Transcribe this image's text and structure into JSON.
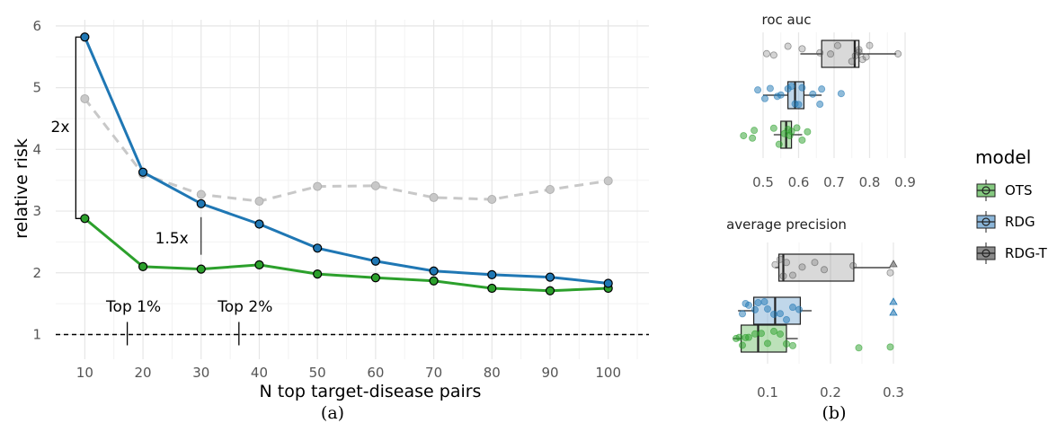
{
  "chart_data": [
    {
      "type": "line",
      "caption": "(a)",
      "xlabel": "N top target-disease pairs",
      "ylabel": "relative risk",
      "x": [
        10,
        20,
        30,
        40,
        50,
        60,
        70,
        80,
        90,
        100
      ],
      "xticks": [
        "10",
        "20",
        "30",
        "40",
        "50",
        "60",
        "70",
        "80",
        "90",
        "100"
      ],
      "yticks": [
        "1",
        "2",
        "3",
        "4",
        "5",
        "6"
      ],
      "xlim": [
        5,
        107
      ],
      "ylim": [
        0.6,
        6.1
      ],
      "grid": true,
      "series": [
        {
          "name": "RDG-T",
          "color": "#c8c8c8",
          "dashed": true,
          "values": [
            4.82,
            3.6,
            3.27,
            3.16,
            3.4,
            3.41,
            3.22,
            3.19,
            3.35,
            3.49
          ]
        },
        {
          "name": "OTS",
          "color": "#2ca02c",
          "dashed": false,
          "values": [
            2.88,
            2.1,
            2.06,
            2.13,
            1.98,
            1.92,
            1.87,
            1.75,
            1.71,
            1.75
          ]
        },
        {
          "name": "RDG",
          "color": "#1f77b4",
          "dashed": false,
          "values": [
            5.82,
            3.63,
            3.12,
            2.79,
            2.4,
            2.19,
            2.03,
            1.97,
            1.93,
            1.83
          ]
        }
      ],
      "reference_line": 1,
      "annotations": [
        {
          "text": "2x",
          "x": 10,
          "y_from": 2.88,
          "y_to": 5.82
        },
        {
          "text": "1.5x",
          "x": 30,
          "y_from": 2.06,
          "y_to": 3.12
        },
        {
          "text": "Top 1%",
          "x": 17.3,
          "y": 1
        },
        {
          "text": "Top 2%",
          "x": 36.5,
          "y": 1
        }
      ]
    },
    {
      "type": "box",
      "caption": "(b)",
      "panels": [
        {
          "title": "roc auc",
          "xticks": [
            "0.5",
            "0.6",
            "0.7",
            "0.8",
            "0.9"
          ],
          "xlim": [
            0.42,
            0.92
          ],
          "boxes": [
            {
              "model": "RDG-T",
              "q1": 0.665,
              "median": 0.758,
              "q3": 0.77,
              "whisker_low": 0.605,
              "whisker_high": 0.875,
              "points": [
                0.51,
                0.53,
                0.57,
                0.61,
                0.66,
                0.69,
                0.71,
                0.75,
                0.76,
                0.77,
                0.77,
                0.78,
                0.79,
                0.8,
                0.88
              ]
            },
            {
              "model": "RDG",
              "q1": 0.57,
              "median": 0.59,
              "q3": 0.615,
              "whisker_low": 0.5,
              "whisker_high": 0.665,
              "points": [
                0.485,
                0.505,
                0.52,
                0.54,
                0.55,
                0.57,
                0.58,
                0.59,
                0.6,
                0.61,
                0.64,
                0.66,
                0.665,
                0.72
              ]
            },
            {
              "model": "OTS",
              "q1": 0.55,
              "median": 0.565,
              "q3": 0.58,
              "whisker_low": 0.53,
              "whisker_high": 0.61,
              "points": [
                0.445,
                0.47,
                0.475,
                0.53,
                0.545,
                0.56,
                0.57,
                0.575,
                0.58,
                0.595,
                0.61,
                0.625
              ]
            }
          ]
        },
        {
          "title": "average precision",
          "xticks": [
            "0.1",
            "0.2",
            "0.3"
          ],
          "xlim": [
            0.035,
            0.31
          ],
          "boxes": [
            {
              "model": "RDG-T",
              "q1": 0.118,
              "median": 0.125,
              "q3": 0.237,
              "whisker_low": 0.112,
              "whisker_high": 0.295,
              "points": [
                0.112,
                0.12,
                0.125,
                0.13,
                0.14,
                0.155,
                0.175,
                0.19,
                0.236,
                0.295
              ],
              "outliers": [
                {
                  "value": 0.3,
                  "shape": "triangle"
                }
              ]
            },
            {
              "model": "RDG",
              "q1": 0.078,
              "median": 0.112,
              "q3": 0.152,
              "whisker_low": 0.053,
              "whisker_high": 0.17,
              "points": [
                0.06,
                0.065,
                0.07,
                0.08,
                0.085,
                0.095,
                0.1,
                0.11,
                0.12,
                0.13,
                0.14,
                0.15
              ],
              "outliers": [
                {
                  "value": 0.3,
                  "shape": "triangle"
                },
                {
                  "value": 0.3,
                  "shape": "triangle"
                }
              ]
            },
            {
              "model": "OTS",
              "q1": 0.058,
              "median": 0.085,
              "q3": 0.13,
              "whisker_low": 0.045,
              "whisker_high": 0.148,
              "points": [
                0.05,
                0.055,
                0.06,
                0.065,
                0.07,
                0.08,
                0.09,
                0.1,
                0.11,
                0.12,
                0.13,
                0.14,
                0.245,
                0.295
              ]
            }
          ]
        }
      ],
      "legend": {
        "title": "model",
        "position": "right",
        "entries": [
          {
            "label": "OTS",
            "color": "#2ca02c",
            "fill": "#85c980"
          },
          {
            "label": "RDG",
            "color": "#1f77b4",
            "fill": "#8cb6d9"
          },
          {
            "label": "RDG-T",
            "color": "#555555",
            "fill": "#8a8a8a"
          }
        ]
      }
    }
  ]
}
